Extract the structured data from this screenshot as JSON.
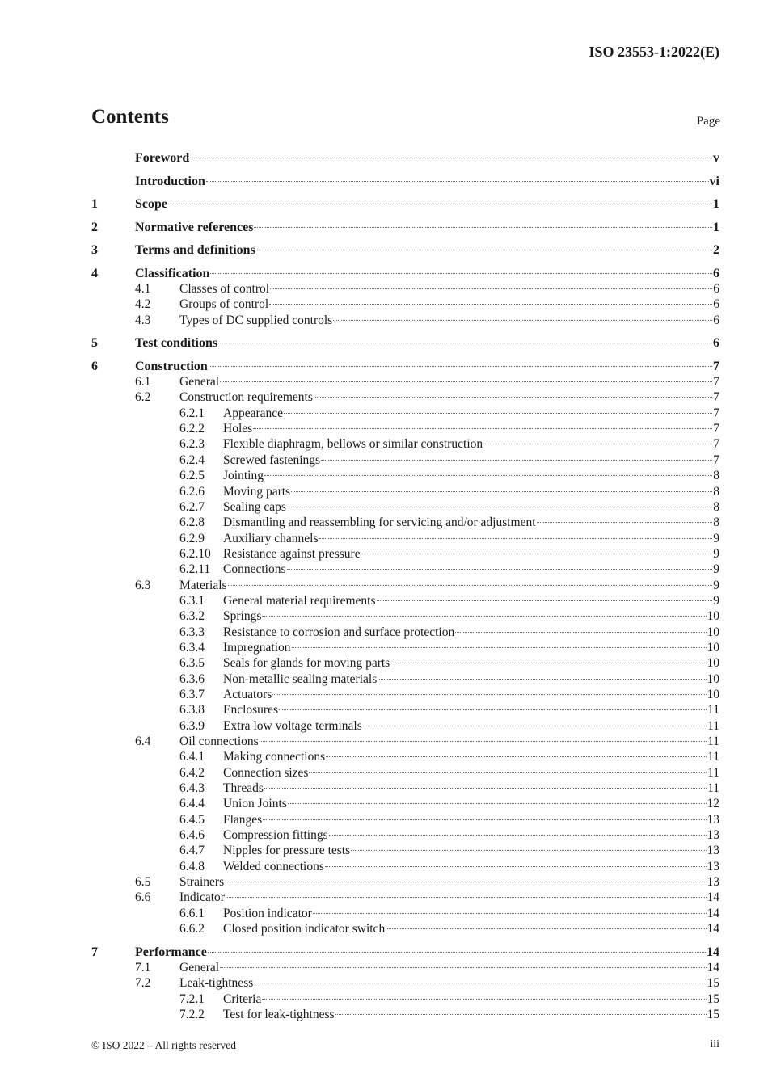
{
  "header": {
    "document_id": "ISO 23553-1:2022(E)"
  },
  "contents": {
    "title": "Contents",
    "page_label": "Page",
    "entries": [
      {
        "level": 1,
        "num": "",
        "title": "Foreword",
        "page": "v"
      },
      {
        "level": 1,
        "num": "",
        "title": "Introduction",
        "page": "vi"
      },
      {
        "level": 1,
        "num": "1",
        "title": "Scope",
        "page": "1"
      },
      {
        "level": 1,
        "num": "2",
        "title": "Normative references",
        "page": "1"
      },
      {
        "level": 1,
        "num": "3",
        "title": "Terms and definitions",
        "page": "2"
      },
      {
        "level": 1,
        "num": "4",
        "title": "Classification",
        "page": "6"
      },
      {
        "level": 2,
        "num": "4.1",
        "title": "Classes of control",
        "page": "6"
      },
      {
        "level": 2,
        "num": "4.2",
        "title": "Groups of control",
        "page": "6"
      },
      {
        "level": 2,
        "num": "4.3",
        "title": "Types of DC supplied controls",
        "page": "6"
      },
      {
        "level": 1,
        "num": "5",
        "title": "Test conditions",
        "page": "6"
      },
      {
        "level": 1,
        "num": "6",
        "title": "Construction",
        "page": "7"
      },
      {
        "level": 2,
        "num": "6.1",
        "title": "General",
        "page": "7"
      },
      {
        "level": 2,
        "num": "6.2",
        "title": "Construction requirements",
        "page": "7"
      },
      {
        "level": 3,
        "num": "6.2.1",
        "title": "Appearance",
        "page": "7"
      },
      {
        "level": 3,
        "num": "6.2.2",
        "title": "Holes",
        "page": "7"
      },
      {
        "level": 3,
        "num": "6.2.3",
        "title": "Flexible diaphragm, bellows or similar construction",
        "page": "7"
      },
      {
        "level": 3,
        "num": "6.2.4",
        "title": "Screwed fastenings",
        "page": "7"
      },
      {
        "level": 3,
        "num": "6.2.5",
        "title": "Jointing",
        "page": "8"
      },
      {
        "level": 3,
        "num": "6.2.6",
        "title": "Moving parts",
        "page": "8"
      },
      {
        "level": 3,
        "num": "6.2.7",
        "title": "Sealing caps",
        "page": "8"
      },
      {
        "level": 3,
        "num": "6.2.8",
        "title": "Dismantling and reassembling for servicing and/or adjustment",
        "page": "8"
      },
      {
        "level": 3,
        "num": "6.2.9",
        "title": "Auxiliary channels",
        "page": "9"
      },
      {
        "level": 3,
        "num": "6.2.10",
        "title": "Resistance against pressure",
        "page": "9"
      },
      {
        "level": 3,
        "num": "6.2.11",
        "title": "Connections",
        "page": "9"
      },
      {
        "level": 2,
        "num": "6.3",
        "title": "Materials",
        "page": "9"
      },
      {
        "level": 3,
        "num": "6.3.1",
        "title": "General material requirements",
        "page": "9"
      },
      {
        "level": 3,
        "num": "6.3.2",
        "title": "Springs",
        "page": "10"
      },
      {
        "level": 3,
        "num": "6.3.3",
        "title": "Resistance to corrosion and surface protection",
        "page": "10"
      },
      {
        "level": 3,
        "num": "6.3.4",
        "title": "Impregnation",
        "page": "10"
      },
      {
        "level": 3,
        "num": "6.3.5",
        "title": "Seals for glands for moving parts",
        "page": "10"
      },
      {
        "level": 3,
        "num": "6.3.6",
        "title": "Non-metallic sealing materials",
        "page": "10"
      },
      {
        "level": 3,
        "num": "6.3.7",
        "title": "Actuators",
        "page": "10"
      },
      {
        "level": 3,
        "num": "6.3.8",
        "title": "Enclosures",
        "page": "11"
      },
      {
        "level": 3,
        "num": "6.3.9",
        "title": "Extra low voltage terminals",
        "page": "11"
      },
      {
        "level": 2,
        "num": "6.4",
        "title": "Oil connections",
        "page": "11"
      },
      {
        "level": 3,
        "num": "6.4.1",
        "title": "Making connections",
        "page": "11"
      },
      {
        "level": 3,
        "num": "6.4.2",
        "title": "Connection sizes",
        "page": "11"
      },
      {
        "level": 3,
        "num": "6.4.3",
        "title": "Threads",
        "page": "11"
      },
      {
        "level": 3,
        "num": "6.4.4",
        "title": "Union Joints",
        "page": "12"
      },
      {
        "level": 3,
        "num": "6.4.5",
        "title": "Flanges",
        "page": "13"
      },
      {
        "level": 3,
        "num": "6.4.6",
        "title": "Compression fittings",
        "page": "13"
      },
      {
        "level": 3,
        "num": "6.4.7",
        "title": "Nipples for pressure tests",
        "page": "13"
      },
      {
        "level": 3,
        "num": "6.4.8",
        "title": "Welded connections",
        "page": "13"
      },
      {
        "level": 2,
        "num": "6.5",
        "title": "Strainers",
        "page": "13"
      },
      {
        "level": 2,
        "num": "6.6",
        "title": "Indicator",
        "page": "14"
      },
      {
        "level": 3,
        "num": "6.6.1",
        "title": "Position indicator",
        "page": "14"
      },
      {
        "level": 3,
        "num": "6.6.2",
        "title": "Closed position indicator switch",
        "page": "14"
      },
      {
        "level": 1,
        "num": "7",
        "title": "Performance",
        "page": "14"
      },
      {
        "level": 2,
        "num": "7.1",
        "title": "General",
        "page": "14"
      },
      {
        "level": 2,
        "num": "7.2",
        "title": "Leak-tightness",
        "page": "15"
      },
      {
        "level": 3,
        "num": "7.2.1",
        "title": "Criteria",
        "page": "15"
      },
      {
        "level": 3,
        "num": "7.2.2",
        "title": "Test for leak-tightness",
        "page": "15"
      }
    ]
  },
  "footer": {
    "copyright": "© ISO 2022 – All rights reserved",
    "page_number": "iii"
  }
}
